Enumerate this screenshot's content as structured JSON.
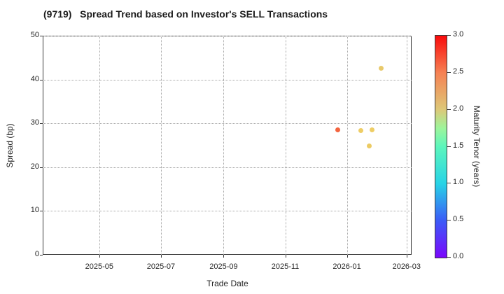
{
  "chart_data": {
    "type": "scatter",
    "title": "(9719)   Spread Trend based on Investor's SELL Transactions",
    "xlabel": "Trade Date",
    "ylabel": "Spread (bp)",
    "x_range": [
      "2025-03-06",
      "2026-03-06"
    ],
    "ylim": [
      0,
      50
    ],
    "y_ticks": [
      0,
      10,
      20,
      30,
      40,
      50
    ],
    "x_ticks": [
      {
        "date": "2025-05-01",
        "label": "2025-05"
      },
      {
        "date": "2025-07-01",
        "label": "2025-07"
      },
      {
        "date": "2025-09-01",
        "label": "2025-09"
      },
      {
        "date": "2025-11-01",
        "label": "2025-11"
      },
      {
        "date": "2026-01-01",
        "label": "2026-01"
      },
      {
        "date": "2026-03-01",
        "label": "2026-03"
      }
    ],
    "grid": true,
    "points": [
      {
        "date": "2025-12-23",
        "spread": 28.5,
        "maturity": 2.6,
        "color": "#f2572f"
      },
      {
        "date": "2026-01-15",
        "spread": 28.4,
        "maturity": 2.0,
        "color": "#edc958"
      },
      {
        "date": "2026-01-23",
        "spread": 24.9,
        "maturity": 2.0,
        "color": "#eac756"
      },
      {
        "date": "2026-01-26",
        "spread": 28.5,
        "maturity": 2.0,
        "color": "#edc958"
      },
      {
        "date": "2026-02-04",
        "spread": 42.5,
        "maturity": 2.0,
        "color": "#e6c45e"
      }
    ],
    "colorbar": {
      "label": "Maturity Tenor (years)",
      "min": 0.0,
      "max": 3.0,
      "ticks": [
        "3.0",
        "2.5",
        "2.0",
        "1.5",
        "1.0",
        "0.5",
        "0.0"
      ],
      "gradient": [
        {
          "value": 0.0,
          "color": "#7a07fc"
        },
        {
          "value": 0.5,
          "color": "#3b5bf7"
        },
        {
          "value": 1.0,
          "color": "#27d3e6"
        },
        {
          "value": 1.5,
          "color": "#5cf6bc"
        },
        {
          "value": 1.75,
          "color": "#9df59b"
        },
        {
          "value": 2.0,
          "color": "#ddc878"
        },
        {
          "value": 2.5,
          "color": "#f68153"
        },
        {
          "value": 3.0,
          "color": "#f90b0b"
        }
      ]
    }
  }
}
